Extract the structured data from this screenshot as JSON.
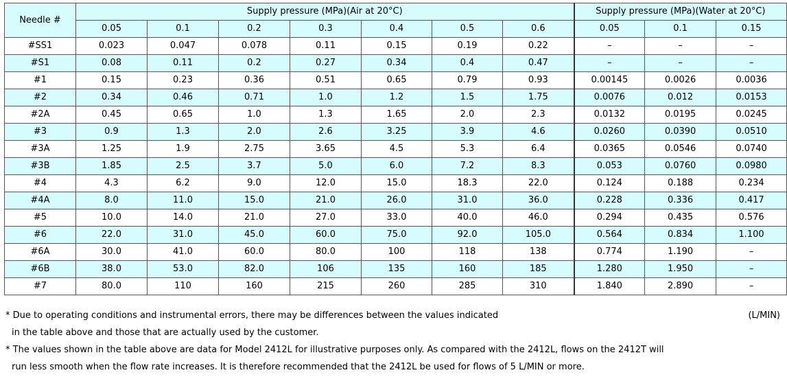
{
  "header": {
    "needle_label": "Needle #",
    "air_group_label": "Supply pressure (MPa)(Air at 20°C)",
    "water_group_label": "Supply pressure (MPa)(Water at 20°C)",
    "air_pressures": [
      "0.05",
      "0.1",
      "0.2",
      "0.3",
      "0.4",
      "0.5",
      "0.6"
    ],
    "water_pressures": [
      "0.05",
      "0.1",
      "0.15"
    ]
  },
  "rows": [
    {
      "needle": "#SS1",
      "air": [
        "0.023",
        "0.047",
        "0.078",
        "0.11",
        "0.15",
        "0.19",
        "0.22"
      ],
      "water": [
        "–",
        "–",
        "–"
      ]
    },
    {
      "needle": "#S1",
      "air": [
        "0.08",
        "0.11",
        "0.2",
        "0.27",
        "0.34",
        "0.4",
        "0.47"
      ],
      "water": [
        "–",
        "–",
        "–"
      ]
    },
    {
      "needle": "#1",
      "air": [
        "0.15",
        "0.23",
        "0.36",
        "0.51",
        "0.65",
        "0.79",
        "0.93"
      ],
      "water": [
        "0.00145",
        "0.0026",
        "0.0036"
      ]
    },
    {
      "needle": "#2",
      "air": [
        "0.34",
        "0.46",
        "0.71",
        "1.0",
        "1.2",
        "1.5",
        "1.75"
      ],
      "water": [
        "0.0076",
        "0.012",
        "0.0153"
      ]
    },
    {
      "needle": "#2A",
      "air": [
        "0.45",
        "0.65",
        "1.0",
        "1.3",
        "1.65",
        "2.0",
        "2.3"
      ],
      "water": [
        "0.0132",
        "0.0195",
        "0.0245"
      ]
    },
    {
      "needle": "#3",
      "air": [
        "0.9",
        "1.3",
        "2.0",
        "2.6",
        "3.25",
        "3.9",
        "4.6"
      ],
      "water": [
        "0.0260",
        "0.0390",
        "0.0510"
      ]
    },
    {
      "needle": "#3A",
      "air": [
        "1.25",
        "1.9",
        "2.75",
        "3.65",
        "4.5",
        "5.3",
        "6.4"
      ],
      "water": [
        "0.0365",
        "0.0546",
        "0.0740"
      ]
    },
    {
      "needle": "#3B",
      "air": [
        "1.85",
        "2.5",
        "3.7",
        "5.0",
        "6.0",
        "7.2",
        "8.3"
      ],
      "water": [
        "0.053",
        "0.0760",
        "0.0980"
      ]
    },
    {
      "needle": "#4",
      "air": [
        "4.3",
        "6.2",
        "9.0",
        "12.0",
        "15.0",
        "18.3",
        "22.0"
      ],
      "water": [
        "0.124",
        "0.188",
        "0.234"
      ]
    },
    {
      "needle": "#4A",
      "air": [
        "8.0",
        "11.0",
        "15.0",
        "21.0",
        "26.0",
        "31.0",
        "36.0"
      ],
      "water": [
        "0.228",
        "0.336",
        "0.417"
      ]
    },
    {
      "needle": "#5",
      "air": [
        "10.0",
        "14.0",
        "21.0",
        "27.0",
        "33.0",
        "40.0",
        "46.0"
      ],
      "water": [
        "0.294",
        "0.435",
        "0.576"
      ]
    },
    {
      "needle": "#6",
      "air": [
        "22.0",
        "31.0",
        "45.0",
        "60.0",
        "75.0",
        "92.0",
        "105.0"
      ],
      "water": [
        "0.564",
        "0.834",
        "1.100"
      ]
    },
    {
      "needle": "#6A",
      "air": [
        "30.0",
        "41.0",
        "60.0",
        "80.0",
        "100",
        "118",
        "138"
      ],
      "water": [
        "0.774",
        "1.190",
        "–"
      ]
    },
    {
      "needle": "#6B",
      "air": [
        "38.0",
        "53.0",
        "82.0",
        "106",
        "135",
        "160",
        "185"
      ],
      "water": [
        "1.280",
        "1.950",
        "–"
      ]
    },
    {
      "needle": "#7",
      "air": [
        "80.0",
        "110",
        "160",
        "215",
        "260",
        "285",
        "310"
      ],
      "water": [
        "1.840",
        "2.890",
        "–"
      ]
    }
  ],
  "unit": "(L/MIN)",
  "notes": [
    "* Due to operating conditions and instrumental errors, there may be differences between the values indicated",
    "in the table above and those that are  actually used by the customer.",
    "* The values shown in the table above are data for Model 2412L for illustrative purposes only. As compared with the 2412L, flows on the 2412T will",
    "run less smooth when the flow rate increases. It is therefore recommended that the 2412L be used for flows of 5 L/MIN or more."
  ]
}
